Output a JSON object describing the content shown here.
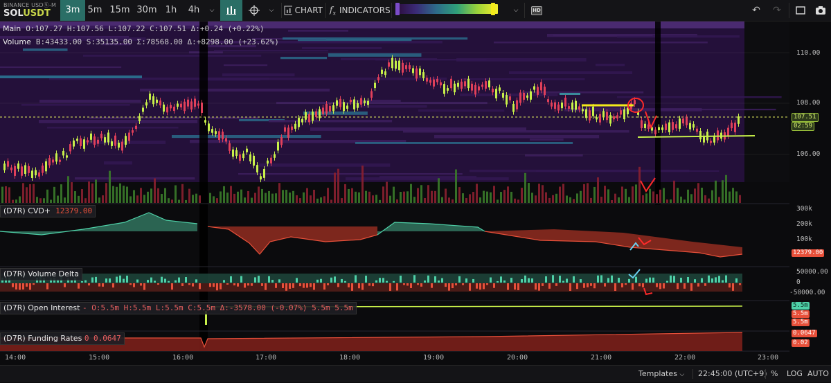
{
  "toolbar": {
    "exchange": "BINANCE USDⓈ-M",
    "symbol_base": "SOL",
    "symbol_quote": "USDT",
    "timeframes": [
      {
        "label": "3m",
        "active": true
      },
      {
        "label": "5m",
        "active": false
      },
      {
        "label": "15m",
        "active": false
      },
      {
        "label": "30m",
        "active": false
      },
      {
        "label": "1h",
        "active": false
      },
      {
        "label": "4h",
        "active": false
      }
    ],
    "chart_label": "CHART",
    "indicators_label": "INDICATORS",
    "indicators_icon": "fx-icon",
    "hd_label": "HD",
    "colors": {
      "accent": "#2a6e66",
      "knob_left": "#7b4cc8",
      "knob_right": "#f4ea1a"
    }
  },
  "legends": {
    "main": {
      "label": "Main",
      "values": "O:107.27  H:107.56  L:107.22  C:107.51  Δ:+0.24  (+0.22%)"
    },
    "volume": {
      "label": "Volume",
      "values": "B:43433.00  S:35135.00  Σ:78568.00  Δ:+8298.00  (+23.62%)"
    }
  },
  "panes": {
    "cvd": {
      "label": "(D7R) CVD+",
      "value": "12379.00"
    },
    "volume_delta": {
      "label": "(D7R) Volume Delta"
    },
    "open_interest": {
      "label": "(D7R) Open Interest",
      "values": "-  O:5.5m  H:5.5m  L:5.5m  C:5.5m  Δ:-3578.00  (-0.07%)  5.5m  5.5m"
    },
    "funding": {
      "label": "(D7R) Funding Rates",
      "values": "0  0.0647"
    }
  },
  "price_axis": {
    "labels": [
      "110.00",
      "108.00",
      "106.00"
    ],
    "last_price": "107.51",
    "countdown": "02:59"
  },
  "cvd_axis": {
    "labels": [
      "300k",
      "200k",
      "100k"
    ],
    "last": "12379.00"
  },
  "vd_axis": {
    "labels": [
      "50000.00",
      "0",
      "-50000.00"
    ]
  },
  "oi_axis": {
    "tags": [
      "5.5m",
      "5.5m",
      "5.5m"
    ]
  },
  "fr_axis": {
    "tags": [
      "0.0647",
      "0.02"
    ]
  },
  "time_axis": [
    "14:00",
    "15:00",
    "16:00",
    "17:00",
    "18:00",
    "19:00",
    "20:00",
    "21:00",
    "22:00",
    "23:00"
  ],
  "statusbar": {
    "templates": "Templates",
    "time": "22:45:00 (UTC+9)",
    "percent": "%",
    "log": "LOG",
    "auto": "AUTO"
  },
  "colors": {
    "up": "#c8f04a",
    "down": "#e0405a",
    "cvd_up": "#4fd1a8",
    "cvd_down": "#e8503a",
    "heat_bg": "#2a0d3a"
  }
}
